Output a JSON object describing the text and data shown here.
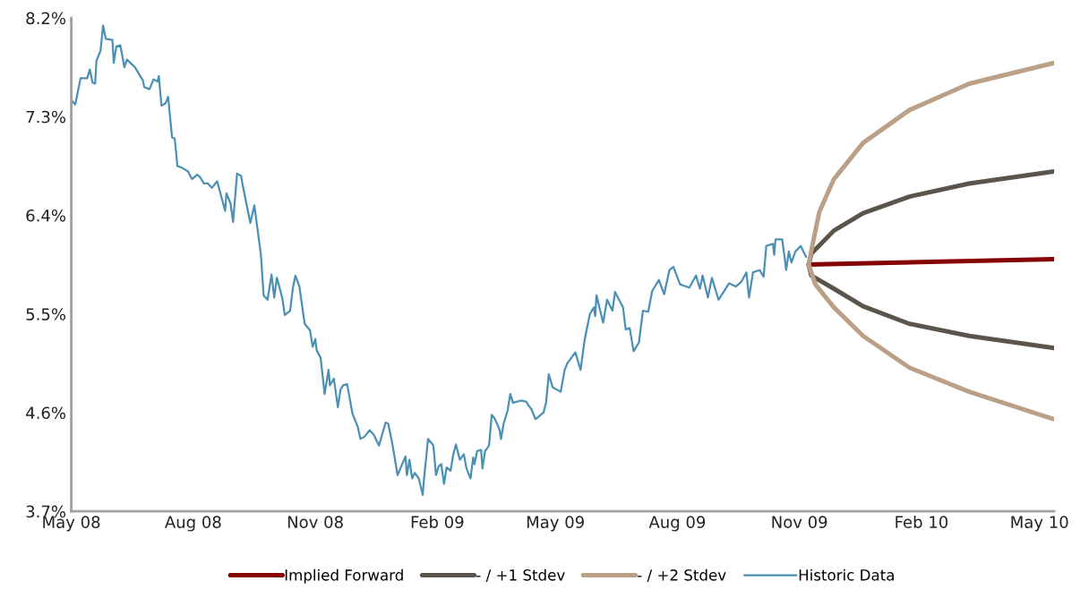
{
  "chart_data": {
    "type": "line",
    "xlim": [
      "2008-05-01",
      "2010-05-12"
    ],
    "xticks": [
      {
        "value": "2008-05-01",
        "label": "May 08"
      },
      {
        "value": "2008-08-01",
        "label": "Aug 08"
      },
      {
        "value": "2008-11-01",
        "label": "Nov 08"
      },
      {
        "value": "2009-02-01",
        "label": "Feb 09"
      },
      {
        "value": "2009-05-01",
        "label": "May 09"
      },
      {
        "value": "2009-08-01",
        "label": "Aug 09"
      },
      {
        "value": "2009-11-01",
        "label": "Nov 09"
      },
      {
        "value": "2010-02-01",
        "label": "Feb 10"
      },
      {
        "value": "2010-05-01",
        "label": "May 10"
      }
    ],
    "ylim": [
      3.7,
      8.2
    ],
    "yticks": [
      {
        "value": 3.7,
        "label": "3.7%"
      },
      {
        "value": 4.6,
        "label": "4.6%"
      },
      {
        "value": 5.5,
        "label": "5.5%"
      },
      {
        "value": 6.4,
        "label": "6.4%"
      },
      {
        "value": 7.3,
        "label": "7.3%"
      },
      {
        "value": 8.2,
        "label": "8.2%"
      }
    ],
    "grid": false,
    "legend": "bottom",
    "marker": "none",
    "line_style": "solid",
    "series": [
      {
        "name": "Implied Forward",
        "color": "#840000",
        "x": [
          "2009-11-08",
          "2010-05-12"
        ],
        "values": [
          5.95,
          6.0
        ]
      },
      {
        "name": "- / +1 Stdev",
        "color": "#5a544b",
        "x": [
          "2009-11-08",
          "2009-11-10",
          "2009-11-27",
          "2009-12-19",
          "2010-01-23",
          "2010-03-09",
          "2010-05-12"
        ],
        "values": [
          5.95,
          6.05,
          6.26,
          6.42,
          6.57,
          6.69,
          6.8
        ]
      },
      {
        "color": "#5a544b",
        "x": [
          "2009-11-08",
          "2009-11-10",
          "2009-11-27",
          "2009-12-19",
          "2010-01-23",
          "2010-03-09",
          "2010-05-12"
        ],
        "values": [
          5.95,
          5.85,
          5.73,
          5.57,
          5.41,
          5.3,
          5.19
        ]
      },
      {
        "name": "- / +2 Stdev",
        "color": "#bba088",
        "x": [
          "2009-11-08",
          "2009-11-10",
          "2009-11-16",
          "2009-11-27",
          "2009-12-19",
          "2010-01-23",
          "2010-03-09",
          "2010-05-12"
        ],
        "values": [
          5.95,
          6.08,
          6.43,
          6.73,
          7.06,
          7.36,
          7.6,
          7.79
        ]
      },
      {
        "color": "#bba088",
        "x": [
          "2009-11-08",
          "2009-11-13",
          "2009-11-27",
          "2009-12-19",
          "2010-01-23",
          "2010-03-09",
          "2010-05-12"
        ],
        "values": [
          5.95,
          5.77,
          5.56,
          5.3,
          5.01,
          4.79,
          4.54
        ]
      },
      {
        "name": "Historic Data",
        "color": "#4a90b4",
        "x": [
          "2008-05-01",
          "2008-05-04",
          "2008-05-08",
          "2008-05-13",
          "2008-05-15",
          "2008-05-17",
          "2008-05-19",
          "2008-05-20",
          "2008-05-23",
          "2008-05-25",
          "2008-05-27",
          "2008-06-01",
          "2008-06-02",
          "2008-06-04",
          "2008-06-07",
          "2008-06-10",
          "2008-06-12",
          "2008-06-18",
          "2008-06-24",
          "2008-06-25",
          "2008-06-29",
          "2008-07-02",
          "2008-07-05",
          "2008-07-06",
          "2008-07-08",
          "2008-07-11",
          "2008-07-13",
          "2008-07-16",
          "2008-07-18",
          "2008-07-20",
          "2008-07-24",
          "2008-07-28",
          "2008-07-31",
          "2008-08-04",
          "2008-08-06",
          "2008-08-09",
          "2008-08-12",
          "2008-08-15",
          "2008-08-19",
          "2008-08-25",
          "2008-08-26",
          "2008-08-29",
          "2008-08-31",
          "2008-09-03",
          "2008-09-06",
          "2008-09-07",
          "2008-09-09",
          "2008-09-13",
          "2008-09-16",
          "2008-09-21",
          "2008-09-23",
          "2008-09-26",
          "2008-09-29",
          "2008-10-01",
          "2008-10-03",
          "2008-10-07",
          "2008-10-09",
          "2008-10-13",
          "2008-10-15",
          "2008-10-17",
          "2008-10-20",
          "2008-10-24",
          "2008-10-28",
          "2008-10-30",
          "2008-11-01",
          "2008-11-02",
          "2008-11-05",
          "2008-11-08",
          "2008-11-11",
          "2008-11-12",
          "2008-11-15",
          "2008-11-18",
          "2008-11-20",
          "2008-11-22",
          "2008-11-25",
          "2008-11-29",
          "2008-12-03",
          "2008-12-05",
          "2008-12-08",
          "2008-12-12",
          "2008-12-15",
          "2008-12-19",
          "2008-12-24",
          "2008-12-26",
          "2008-12-29",
          "2009-01-02",
          "2009-01-08",
          "2009-01-09",
          "2009-01-11",
          "2009-01-13",
          "2009-01-15",
          "2009-01-18",
          "2009-01-21",
          "2009-01-22",
          "2009-01-25",
          "2009-01-29",
          "2009-01-31",
          "2009-02-02",
          "2009-02-04",
          "2009-02-06",
          "2009-02-08",
          "2009-02-11",
          "2009-02-13",
          "2009-02-15",
          "2009-02-18",
          "2009-02-21",
          "2009-02-23",
          "2009-02-26",
          "2009-02-28",
          "2009-03-01",
          "2009-03-03",
          "2009-03-06",
          "2009-03-07",
          "2009-03-09",
          "2009-03-12",
          "2009-03-14",
          "2009-03-16",
          "2009-03-18",
          "2009-03-20",
          "2009-03-21",
          "2009-03-23",
          "2009-03-26",
          "2009-03-28",
          "2009-03-30",
          "2009-04-05",
          "2009-04-09",
          "2009-04-11",
          "2009-04-13",
          "2009-04-16",
          "2009-04-18",
          "2009-04-22",
          "2009-04-24",
          "2009-04-26",
          "2009-04-29",
          "2009-05-05",
          "2009-05-08",
          "2009-05-10",
          "2009-05-16",
          "2009-05-20",
          "2009-05-23",
          "2009-05-27",
          "2009-05-30",
          "2009-05-31",
          "2009-06-01",
          "2009-06-06",
          "2009-06-09",
          "2009-06-13",
          "2009-06-15",
          "2009-06-21",
          "2009-06-23",
          "2009-06-26",
          "2009-06-29",
          "2009-07-03",
          "2009-07-06",
          "2009-07-10",
          "2009-07-13",
          "2009-07-18",
          "2009-07-22",
          "2009-07-26",
          "2009-07-29",
          "2009-08-03",
          "2009-08-10",
          "2009-08-15",
          "2009-08-18",
          "2009-08-20",
          "2009-08-24",
          "2009-08-27",
          "2009-09-01",
          "2009-09-09",
          "2009-09-14",
          "2009-09-18",
          "2009-09-22",
          "2009-09-24",
          "2009-09-27",
          "2009-10-02",
          "2009-10-05",
          "2009-10-07",
          "2009-10-12",
          "2009-10-13",
          "2009-10-14",
          "2009-10-19",
          "2009-10-21",
          "2009-10-22",
          "2009-10-24",
          "2009-10-26",
          "2009-10-29",
          "2009-11-02",
          "2009-11-04",
          "2009-11-06"
        ],
        "values": [
          7.45,
          7.41,
          7.65,
          7.65,
          7.73,
          7.61,
          7.6,
          7.81,
          7.9,
          8.13,
          8.01,
          8.0,
          7.79,
          7.94,
          7.95,
          7.75,
          7.82,
          7.75,
          7.63,
          7.57,
          7.55,
          7.64,
          7.62,
          7.67,
          7.4,
          7.42,
          7.48,
          7.11,
          7.1,
          6.85,
          6.83,
          6.8,
          6.73,
          6.77,
          6.75,
          6.69,
          6.69,
          6.65,
          6.71,
          6.44,
          6.6,
          6.51,
          6.34,
          6.78,
          6.76,
          6.69,
          6.57,
          6.33,
          6.49,
          6.04,
          5.67,
          5.63,
          5.86,
          5.65,
          5.83,
          5.65,
          5.49,
          5.53,
          5.73,
          5.85,
          5.75,
          5.41,
          5.35,
          5.2,
          5.27,
          5.17,
          5.1,
          4.77,
          4.99,
          4.85,
          4.91,
          4.65,
          4.81,
          4.85,
          4.86,
          4.59,
          4.47,
          4.36,
          4.38,
          4.44,
          4.4,
          4.3,
          4.51,
          4.5,
          4.32,
          4.03,
          4.2,
          4.03,
          4.17,
          4.0,
          4.05,
          4.0,
          3.85,
          4.0,
          4.36,
          4.3,
          4.03,
          4.11,
          4.13,
          3.95,
          4.1,
          4.07,
          4.22,
          4.31,
          4.17,
          4.22,
          4.09,
          4.0,
          4.19,
          4.13,
          4.25,
          4.26,
          4.09,
          4.25,
          4.3,
          4.58,
          4.55,
          4.5,
          4.44,
          4.36,
          4.5,
          4.62,
          4.77,
          4.69,
          4.71,
          4.7,
          4.66,
          4.63,
          4.54,
          4.56,
          4.6,
          4.69,
          4.95,
          4.83,
          4.79,
          4.99,
          5.05,
          5.15,
          4.99,
          5.26,
          5.5,
          5.56,
          5.48,
          5.67,
          5.42,
          5.63,
          5.53,
          5.7,
          5.56,
          5.36,
          5.37,
          5.16,
          5.24,
          5.53,
          5.52,
          5.71,
          5.81,
          5.68,
          5.9,
          5.93,
          5.77,
          5.74,
          5.85,
          5.73,
          5.85,
          5.65,
          5.83,
          5.63,
          5.78,
          5.75,
          5.79,
          5.88,
          5.65,
          5.88,
          5.9,
          5.84,
          6.12,
          6.14,
          6.04,
          6.18,
          6.18,
          6.0,
          5.9,
          6.07,
          5.97,
          6.07,
          6.12,
          6.07,
          6.02
        ]
      }
    ]
  }
}
